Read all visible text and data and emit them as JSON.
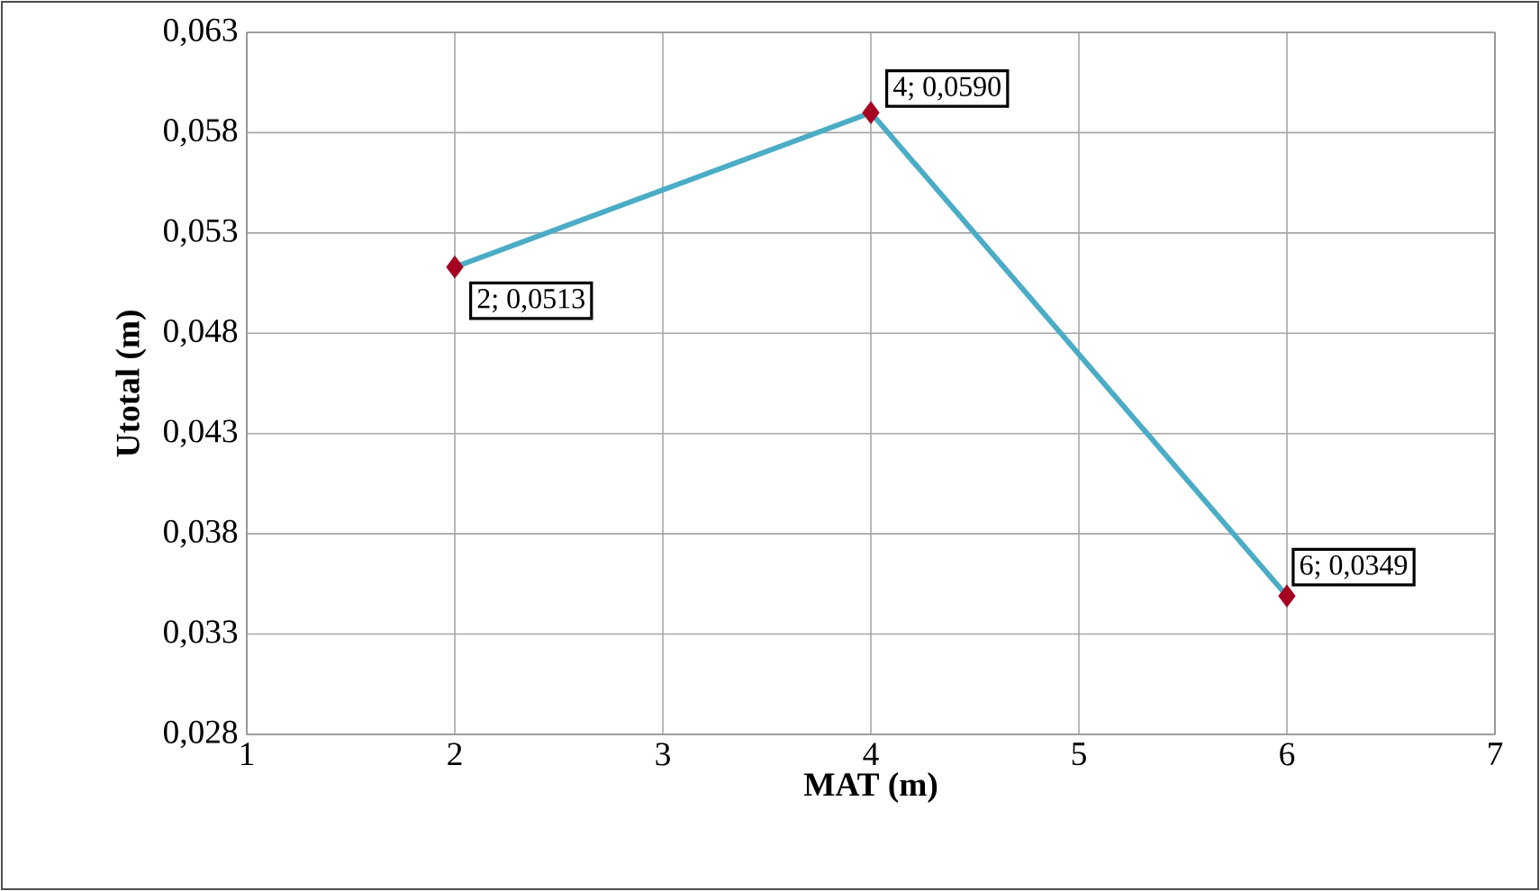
{
  "chart_data": {
    "type": "line",
    "xlabel": "MAT (m)",
    "ylabel": "Utotal (m)",
    "x": [
      2,
      4,
      6
    ],
    "series": [
      {
        "color": "#4bacc6",
        "colors": [
          "#a50021",
          "#a50021",
          "#a50021"
        ],
        "values": [
          0.0513,
          0.059,
          0.0349
        ]
      }
    ],
    "xlim": [
      1,
      7
    ],
    "xticks": [
      1,
      2,
      3,
      4,
      5,
      6,
      7
    ],
    "ylim": [
      0.028,
      0.063
    ],
    "yticks": [
      {
        "value": 0.028,
        "label": "0,028"
      },
      {
        "value": 0.033,
        "label": "0,033"
      },
      {
        "value": 0.038,
        "label": "0,038"
      },
      {
        "value": 0.043,
        "label": "0,043"
      },
      {
        "value": 0.048,
        "label": "0,048"
      },
      {
        "value": 0.053,
        "label": "0,053"
      },
      {
        "value": 0.058,
        "label": "0,058"
      },
      {
        "value": 0.063,
        "label": "0,063"
      }
    ],
    "grid": true,
    "marker": "diamond",
    "line_style": "solid",
    "annotations": [
      {
        "text": "2; 0,0513",
        "x": 2,
        "y": 0.0513
      },
      {
        "text": "4; 0,0590",
        "x": 4,
        "y": 0.059
      },
      {
        "text": "6; 0,0349",
        "x": 6,
        "y": 0.0349
      }
    ]
  }
}
